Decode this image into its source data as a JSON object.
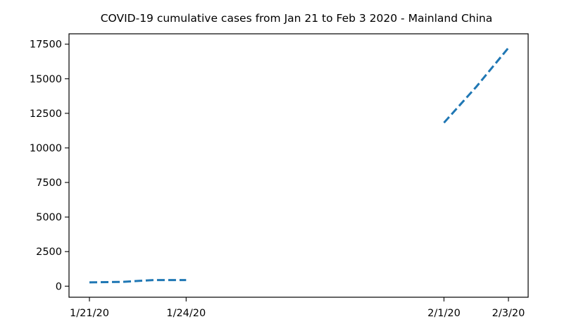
{
  "chart_data": {
    "type": "line",
    "title": "COVID-19 cumulative cases from Jan 21 to Feb 3 2020 - Mainland China",
    "xlabel": "",
    "ylabel": "",
    "x_tick_labels": [
      "1/21/20",
      "1/24/20",
      "2/1/20",
      "2/3/20"
    ],
    "y_tick_labels": [
      "0",
      "2500",
      "5000",
      "7500",
      "10000",
      "12500",
      "15000",
      "17500"
    ],
    "y_ticks": [
      0,
      2500,
      5000,
      7500,
      10000,
      12500,
      15000,
      17500
    ],
    "x_range": [
      "1/21/20",
      "2/3/20"
    ],
    "ylim": [
      -800,
      18250
    ],
    "grid": false,
    "line_style": "dashed",
    "line_color": "#1f77b4",
    "series": [
      {
        "segments": [
          {
            "x": [
              "1/21/20",
              "1/22/20",
              "1/23/20",
              "1/24/20"
            ],
            "y": [
              278,
              309,
              443,
              444
            ]
          },
          {
            "x": [
              "2/1/20",
              "2/2/20",
              "2/3/20"
            ],
            "y": [
              11821,
              14411,
              17238
            ]
          }
        ]
      }
    ]
  }
}
